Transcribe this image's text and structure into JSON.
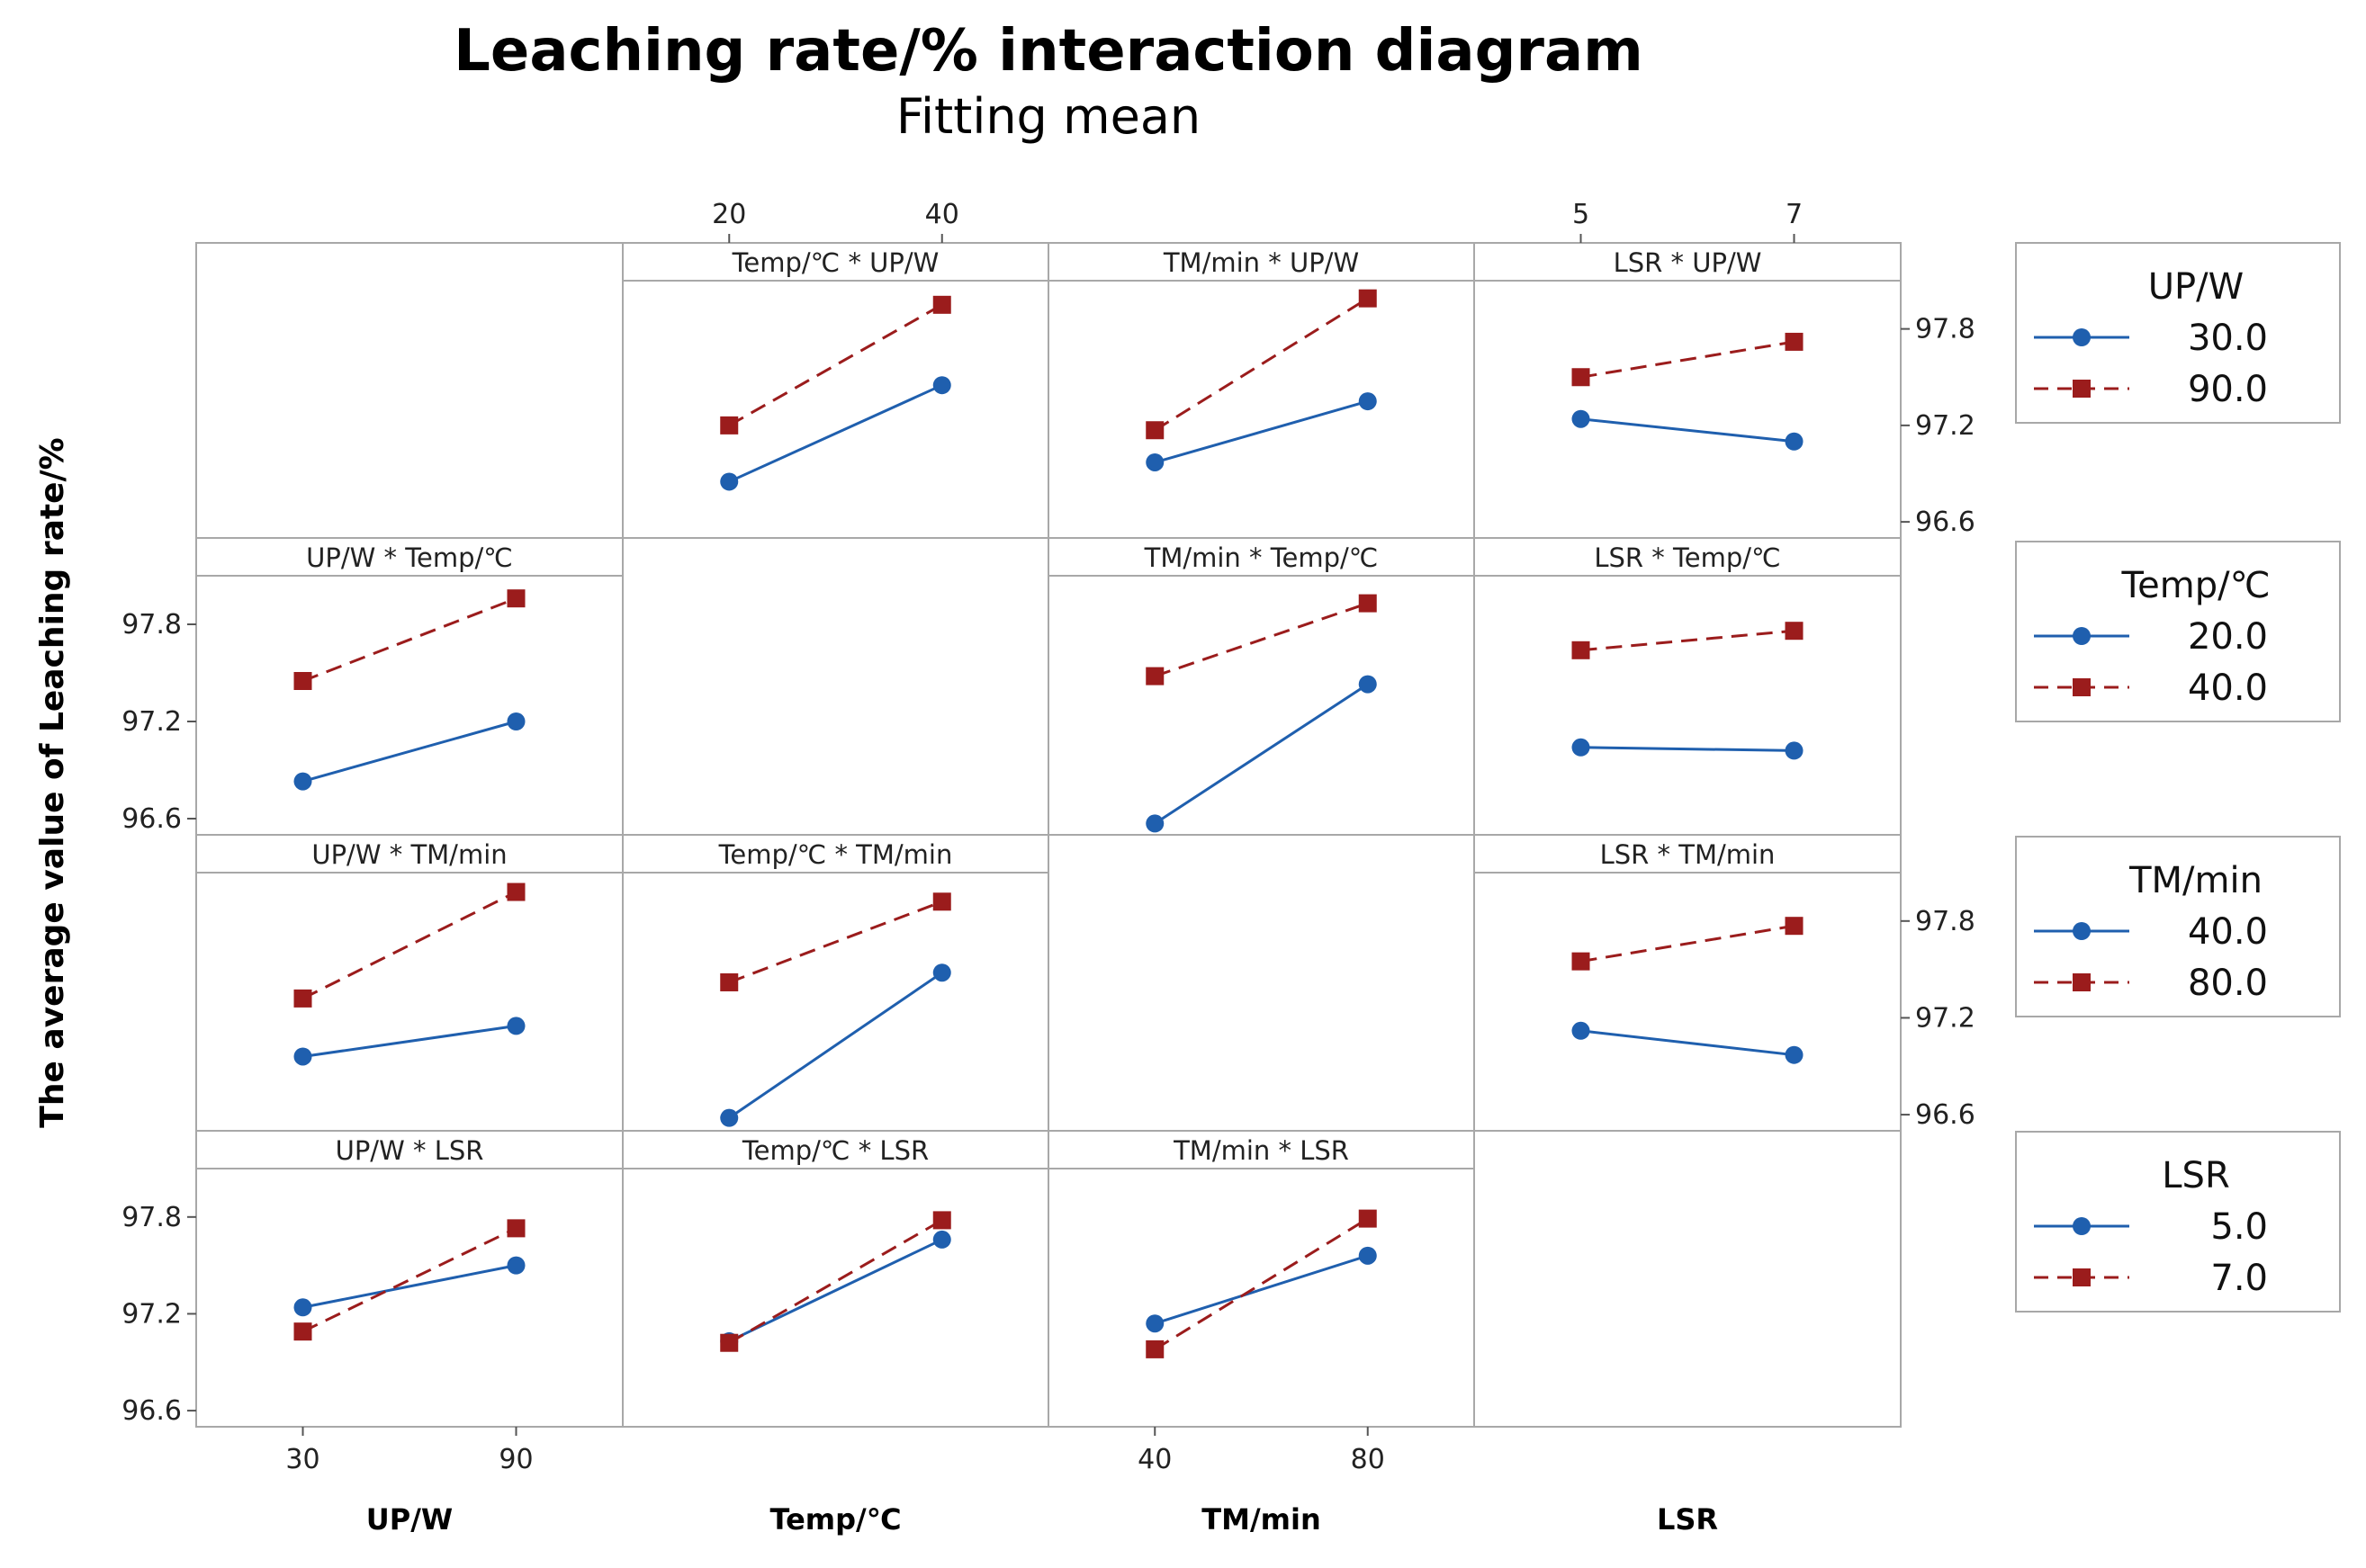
{
  "title": "Leaching rate/% interaction diagram",
  "subtitle": "Fitting mean",
  "y_axis_label": "The average value of Leaching rate/%",
  "colors": {
    "series1": "#1f5fae",
    "series2": "#9b1c1c",
    "grid": "#a8a8a8"
  },
  "factors": [
    {
      "name": "UP/W",
      "levels": [
        30,
        90
      ],
      "tick_labels": [
        "30",
        "90"
      ],
      "legend_values": [
        "30.0",
        "90.0"
      ]
    },
    {
      "name": "Temp/℃",
      "levels": [
        20,
        40
      ],
      "tick_labels": [
        "20",
        "40"
      ],
      "legend_values": [
        "20.0",
        "40.0"
      ]
    },
    {
      "name": "TM/min",
      "levels": [
        40,
        80
      ],
      "tick_labels": [
        "40",
        "80"
      ],
      "legend_values": [
        "40.0",
        "80.0"
      ]
    },
    {
      "name": "LSR",
      "levels": [
        5,
        7
      ],
      "tick_labels": [
        "5",
        "7"
      ],
      "legend_values": [
        "5.0",
        "7.0"
      ]
    }
  ],
  "y_tick_labels": [
    "97.8",
    "97.2",
    "96.6"
  ],
  "chart_data": {
    "type": "line",
    "title": "Leaching rate/% interaction diagram",
    "subtitle": "Fitting mean",
    "ylabel": "The average value of Leaching rate/%",
    "ylim": [
      96.5,
      98.1
    ],
    "yticks": [
      96.6,
      97.2,
      97.8
    ],
    "panels": [
      {
        "title": "Temp/℃ * UP/W",
        "row": 0,
        "col": 1,
        "x": [
          20,
          40
        ],
        "series": [
          {
            "name": "30.0",
            "values": [
              96.85,
              97.45
            ]
          },
          {
            "name": "90.0",
            "values": [
              97.2,
              97.95
            ]
          }
        ]
      },
      {
        "title": "TM/min * UP/W",
        "row": 0,
        "col": 2,
        "x": [
          40,
          80
        ],
        "series": [
          {
            "name": "30.0",
            "values": [
              96.97,
              97.35
            ]
          },
          {
            "name": "90.0",
            "values": [
              97.17,
              97.99
            ]
          }
        ]
      },
      {
        "title": "LSR * UP/W",
        "row": 0,
        "col": 3,
        "x": [
          5,
          7
        ],
        "series": [
          {
            "name": "30.0",
            "values": [
              97.24,
              97.1
            ]
          },
          {
            "name": "90.0",
            "values": [
              97.5,
              97.72
            ]
          }
        ]
      },
      {
        "title": "UP/W * Temp/℃",
        "row": 1,
        "col": 0,
        "x": [
          30,
          90
        ],
        "series": [
          {
            "name": "20.0",
            "values": [
              96.83,
              97.2
            ]
          },
          {
            "name": "40.0",
            "values": [
              97.45,
              97.96
            ]
          }
        ]
      },
      {
        "title": "TM/min * Temp/℃",
        "row": 1,
        "col": 2,
        "x": [
          40,
          80
        ],
        "series": [
          {
            "name": "20.0",
            "values": [
              96.57,
              97.43
            ]
          },
          {
            "name": "40.0",
            "values": [
              97.48,
              97.93
            ]
          }
        ]
      },
      {
        "title": "LSR * Temp/℃",
        "row": 1,
        "col": 3,
        "x": [
          5,
          7
        ],
        "series": [
          {
            "name": "20.0",
            "values": [
              97.04,
              97.02
            ]
          },
          {
            "name": "40.0",
            "values": [
              97.64,
              97.76
            ]
          }
        ]
      },
      {
        "title": "UP/W * TM/min",
        "row": 2,
        "col": 0,
        "x": [
          30,
          90
        ],
        "series": [
          {
            "name": "40.0",
            "values": [
              96.96,
              97.15
            ]
          },
          {
            "name": "80.0",
            "values": [
              97.32,
              97.98
            ]
          }
        ]
      },
      {
        "title": "Temp/℃ * TM/min",
        "row": 2,
        "col": 1,
        "x": [
          20,
          40
        ],
        "series": [
          {
            "name": "40.0",
            "values": [
              96.58,
              97.48
            ]
          },
          {
            "name": "80.0",
            "values": [
              97.42,
              97.92
            ]
          }
        ]
      },
      {
        "title": "LSR * TM/min",
        "row": 2,
        "col": 3,
        "x": [
          5,
          7
        ],
        "series": [
          {
            "name": "40.0",
            "values": [
              97.12,
              96.97
            ]
          },
          {
            "name": "80.0",
            "values": [
              97.55,
              97.77
            ]
          }
        ]
      },
      {
        "title": "UP/W * LSR",
        "row": 3,
        "col": 0,
        "x": [
          30,
          90
        ],
        "series": [
          {
            "name": "5.0",
            "values": [
              97.24,
              97.5
            ]
          },
          {
            "name": "7.0",
            "values": [
              97.09,
              97.73
            ]
          }
        ]
      },
      {
        "title": "Temp/℃ * LSR",
        "row": 3,
        "col": 1,
        "x": [
          20,
          40
        ],
        "series": [
          {
            "name": "5.0",
            "values": [
              97.03,
              97.66
            ]
          },
          {
            "name": "7.0",
            "values": [
              97.02,
              97.78
            ]
          }
        ]
      },
      {
        "title": "TM/min * LSR",
        "row": 3,
        "col": 2,
        "x": [
          40,
          80
        ],
        "series": [
          {
            "name": "5.0",
            "values": [
              97.14,
              97.56
            ]
          },
          {
            "name": "7.0",
            "values": [
              96.98,
              97.79
            ]
          }
        ]
      }
    ]
  }
}
